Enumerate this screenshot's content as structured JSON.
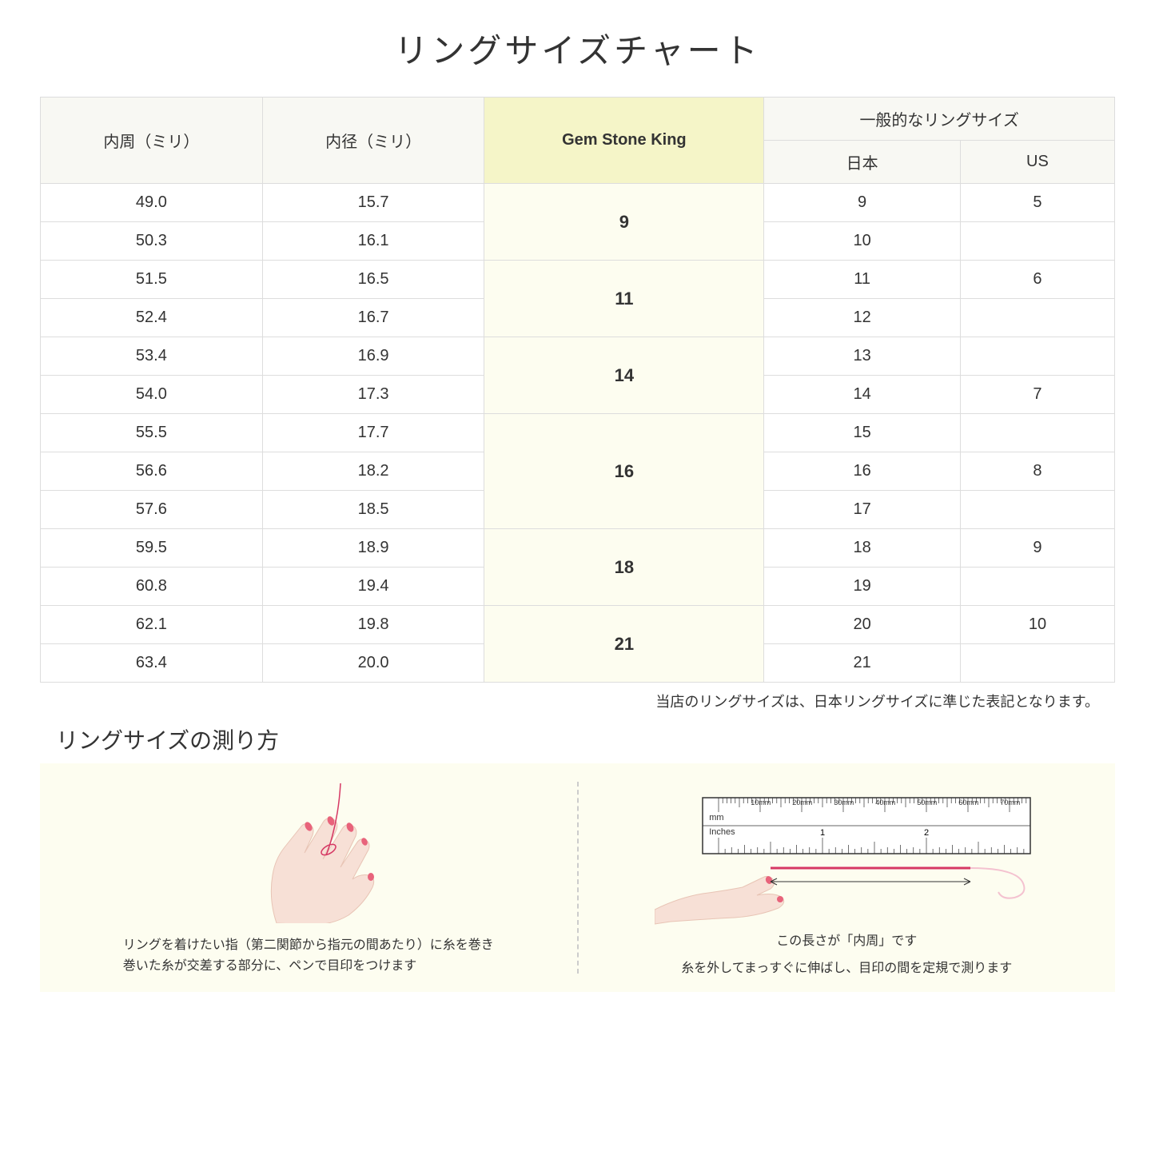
{
  "title": "リングサイズチャート",
  "headers": {
    "circumference": "内周（ミリ）",
    "diameter": "内径（ミリ）",
    "gsk": "Gem Stone King",
    "general_group": "一般的なリングサイズ",
    "japan": "日本",
    "us": "US"
  },
  "groups": [
    {
      "gsk": "9",
      "rows": [
        {
          "circ": "49.0",
          "dia": "15.7",
          "jp": "9",
          "us": "5"
        },
        {
          "circ": "50.3",
          "dia": "16.1",
          "jp": "10",
          "us": ""
        }
      ]
    },
    {
      "gsk": "11",
      "rows": [
        {
          "circ": "51.5",
          "dia": "16.5",
          "jp": "11",
          "us": "6"
        },
        {
          "circ": "52.4",
          "dia": "16.7",
          "jp": "12",
          "us": ""
        }
      ]
    },
    {
      "gsk": "14",
      "rows": [
        {
          "circ": "53.4",
          "dia": "16.9",
          "jp": "13",
          "us": ""
        },
        {
          "circ": "54.0",
          "dia": "17.3",
          "jp": "14",
          "us": "7"
        }
      ]
    },
    {
      "gsk": "16",
      "rows": [
        {
          "circ": "55.5",
          "dia": "17.7",
          "jp": "15",
          "us": ""
        },
        {
          "circ": "56.6",
          "dia": "18.2",
          "jp": "16",
          "us": "8"
        },
        {
          "circ": "57.6",
          "dia": "18.5",
          "jp": "17",
          "us": ""
        }
      ]
    },
    {
      "gsk": "18",
      "rows": [
        {
          "circ": "59.5",
          "dia": "18.9",
          "jp": "18",
          "us": "9"
        },
        {
          "circ": "60.8",
          "dia": "19.4",
          "jp": "19",
          "us": ""
        }
      ]
    },
    {
      "gsk": "21",
      "rows": [
        {
          "circ": "62.1",
          "dia": "19.8",
          "jp": "20",
          "us": "10"
        },
        {
          "circ": "63.4",
          "dia": "20.0",
          "jp": "21",
          "us": ""
        }
      ]
    }
  ],
  "note": "当店のリングサイズは、日本リングサイズに準じた表記となります。",
  "measure_title": "リングサイズの測り方",
  "instruction_left_1": "リングを着けたい指（第二関節から指元の間あたり）に糸を巻き",
  "instruction_left_2": "巻いた糸が交差する部分に、ペンで目印をつけます",
  "arrow_label": "この長さが「内周」です",
  "instruction_right": "糸を外してまっすぐに伸ばし、目印の間を定規で測ります",
  "ruler_mm_label": "mm",
  "ruler_in_label": "Inches",
  "ruler_mm_marks": [
    "10mm",
    "20mm",
    "30mm",
    "40mm",
    "50mm",
    "60mm",
    "70mm"
  ],
  "colors": {
    "header_bg": "#f8f8f3",
    "gsk_header_bg": "#f5f5c8",
    "gsk_cell_bg": "#fdfdf0",
    "border": "#dddddd",
    "instructions_bg": "#fdfdf0",
    "hand_fill": "#f7e0d6",
    "hand_stroke": "#e8c4b5",
    "nail": "#e8637b",
    "thread": "#d63864",
    "ruler_stroke": "#333333"
  }
}
